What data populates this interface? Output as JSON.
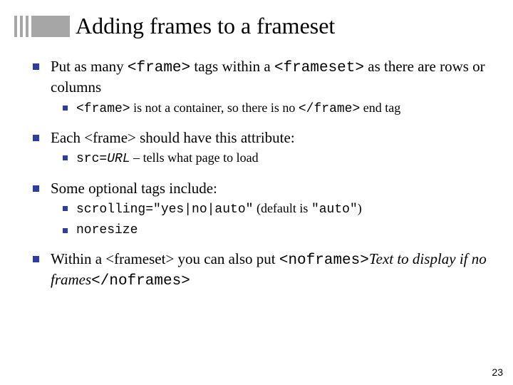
{
  "title": "Adding frames to a frameset",
  "b1_pre": "Put as many ",
  "b1_code1": "<frame>",
  "b1_mid": " tags within a ",
  "b1_code2": "<frameset>",
  "b1_post": " as there are rows or columns",
  "b1s_code1": "<frame>",
  "b1s_mid": " is not a container, so there is no ",
  "b1s_code2": "</frame>",
  "b1s_post": " end tag",
  "b2": "Each <frame> should have this attribute:",
  "b2s_code": "src=",
  "b2s_url": "URL",
  "b2s_post": " – tells what page to load",
  "b3": "Some optional tags include:",
  "b3s1_code": "scrolling=\"yes|no|auto\"",
  "b3s1_mid": "  (default is ",
  "b3s1_code2": "\"auto\"",
  "b3s1_post": ")",
  "b3s2": "noresize",
  "b4_pre": "Within a <frameset> you can also put ",
  "b4_code1": "<noframes>",
  "b4_ital": "Text to display if no frames",
  "b4_code2": "</noframes>",
  "pagenum": "23"
}
